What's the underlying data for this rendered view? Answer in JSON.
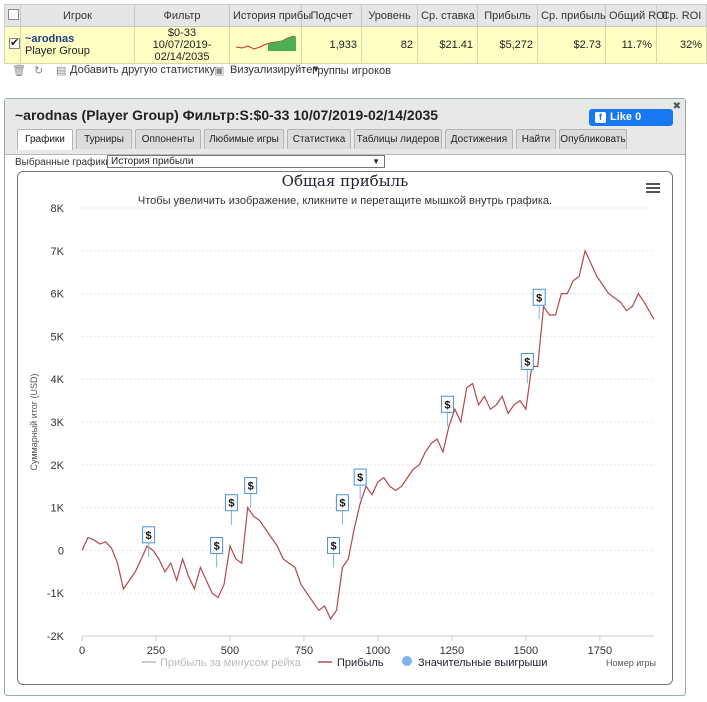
{
  "table": {
    "headers": [
      "Игрок",
      "Фильтр",
      "История прибы",
      "Подсчет",
      "Уровень",
      "Ср. ставка",
      "Прибыль",
      "Ср. прибыль",
      "Общий ROI",
      "Ср. ROI"
    ],
    "row": {
      "player": "~arodnas",
      "group": "Player Group",
      "filter_line1": "$0-33",
      "filter_line2": "10/07/2019-",
      "filter_line3": "02/14/2035",
      "count": "1,933",
      "level": "82",
      "avg_stake": "$21.41",
      "profit": "$5,272",
      "avg_profit": "$2.73",
      "total_roi": "11.7%",
      "avg_roi": "32%"
    }
  },
  "toolbar": {
    "add_stats": "Добавить другую статистику",
    "visualize": "Визуализируйте",
    "groups": "Группы игроков"
  },
  "panel": {
    "title": "~arodnas (Player Group) Фильтр:S:$0-33 10/07/2019-02/14/2035",
    "like_label": "Like 0",
    "tabs": [
      "Графики",
      "Турниры",
      "Оппоненты",
      "Любимые игры",
      "Статистика",
      "Таблицы лидеров",
      "Достижения",
      "Найти",
      "Опубликовать"
    ],
    "chart_select_label": "Выбранные графики:",
    "chart_select_value": "История прибыли"
  },
  "chart_data": {
    "type": "line",
    "title": "Общая прибыль",
    "subtitle": "Чтобы увеличить изображение, кликните и перетащите мышкой внутрь графика.",
    "xlabel": "Номер игры",
    "ylabel": "Суммарный итог (USD)",
    "xlim": [
      0,
      1933
    ],
    "ylim": [
      -2000,
      8000
    ],
    "x_ticks": [
      "0",
      "250",
      "500",
      "750",
      "1000",
      "1250",
      "1500",
      "1750"
    ],
    "y_ticks": [
      "-2K",
      "-1K",
      "0",
      "1K",
      "2K",
      "3K",
      "4K",
      "5K",
      "6K",
      "7K",
      "8K"
    ],
    "legend": [
      "Прибыль за минусом рейка",
      "Прибыль",
      "Значительные выигрыши"
    ],
    "series": [
      {
        "name": "Прибыль",
        "color": "#b3474f",
        "x": [
          0,
          20,
          40,
          60,
          80,
          100,
          120,
          140,
          160,
          180,
          200,
          220,
          240,
          260,
          280,
          300,
          320,
          340,
          360,
          380,
          400,
          420,
          440,
          460,
          480,
          500,
          520,
          540,
          560,
          580,
          600,
          620,
          640,
          660,
          680,
          700,
          720,
          740,
          760,
          780,
          800,
          820,
          840,
          860,
          880,
          900,
          920,
          940,
          960,
          980,
          1000,
          1020,
          1040,
          1060,
          1080,
          1100,
          1120,
          1140,
          1160,
          1180,
          1200,
          1220,
          1240,
          1260,
          1280,
          1300,
          1320,
          1340,
          1360,
          1380,
          1400,
          1420,
          1440,
          1460,
          1480,
          1500,
          1520,
          1540,
          1560,
          1580,
          1600,
          1620,
          1640,
          1660,
          1680,
          1700,
          1720,
          1740,
          1760,
          1780,
          1800,
          1820,
          1840,
          1860,
          1880,
          1900,
          1933
        ],
        "values": [
          0,
          300,
          250,
          150,
          200,
          50,
          -300,
          -900,
          -700,
          -500,
          -200,
          100,
          0,
          -200,
          -500,
          -300,
          -700,
          -200,
          -600,
          -900,
          -400,
          -700,
          -1000,
          -1100,
          -800,
          100,
          -200,
          -300,
          1000,
          800,
          700,
          500,
          300,
          100,
          -200,
          -300,
          -400,
          -800,
          -1000,
          -1200,
          -1400,
          -1300,
          -1600,
          -1400,
          -400,
          -200,
          500,
          1100,
          1500,
          1300,
          1600,
          1700,
          1500,
          1400,
          1500,
          1700,
          1900,
          2000,
          2300,
          2500,
          2600,
          2300,
          2900,
          3300,
          3000,
          3800,
          3900,
          3400,
          3600,
          3300,
          3400,
          3600,
          3200,
          3400,
          3500,
          3300,
          4300,
          4300,
          5700,
          5500,
          5500,
          6000,
          6000,
          6300,
          6400,
          7000,
          6700,
          6400,
          6200,
          6000,
          5900,
          5800,
          5600,
          5700,
          6000,
          5800,
          5400
        ]
      }
    ],
    "big_wins": [
      {
        "x": 225,
        "y": -150
      },
      {
        "x": 455,
        "y": -400
      },
      {
        "x": 505,
        "y": 600
      },
      {
        "x": 570,
        "y": 1000
      },
      {
        "x": 850,
        "y": -400
      },
      {
        "x": 880,
        "y": 600
      },
      {
        "x": 940,
        "y": 1200
      },
      {
        "x": 1235,
        "y": 2900
      },
      {
        "x": 1505,
        "y": 3900
      },
      {
        "x": 1545,
        "y": 5400
      }
    ],
    "big_win_label": "$"
  }
}
